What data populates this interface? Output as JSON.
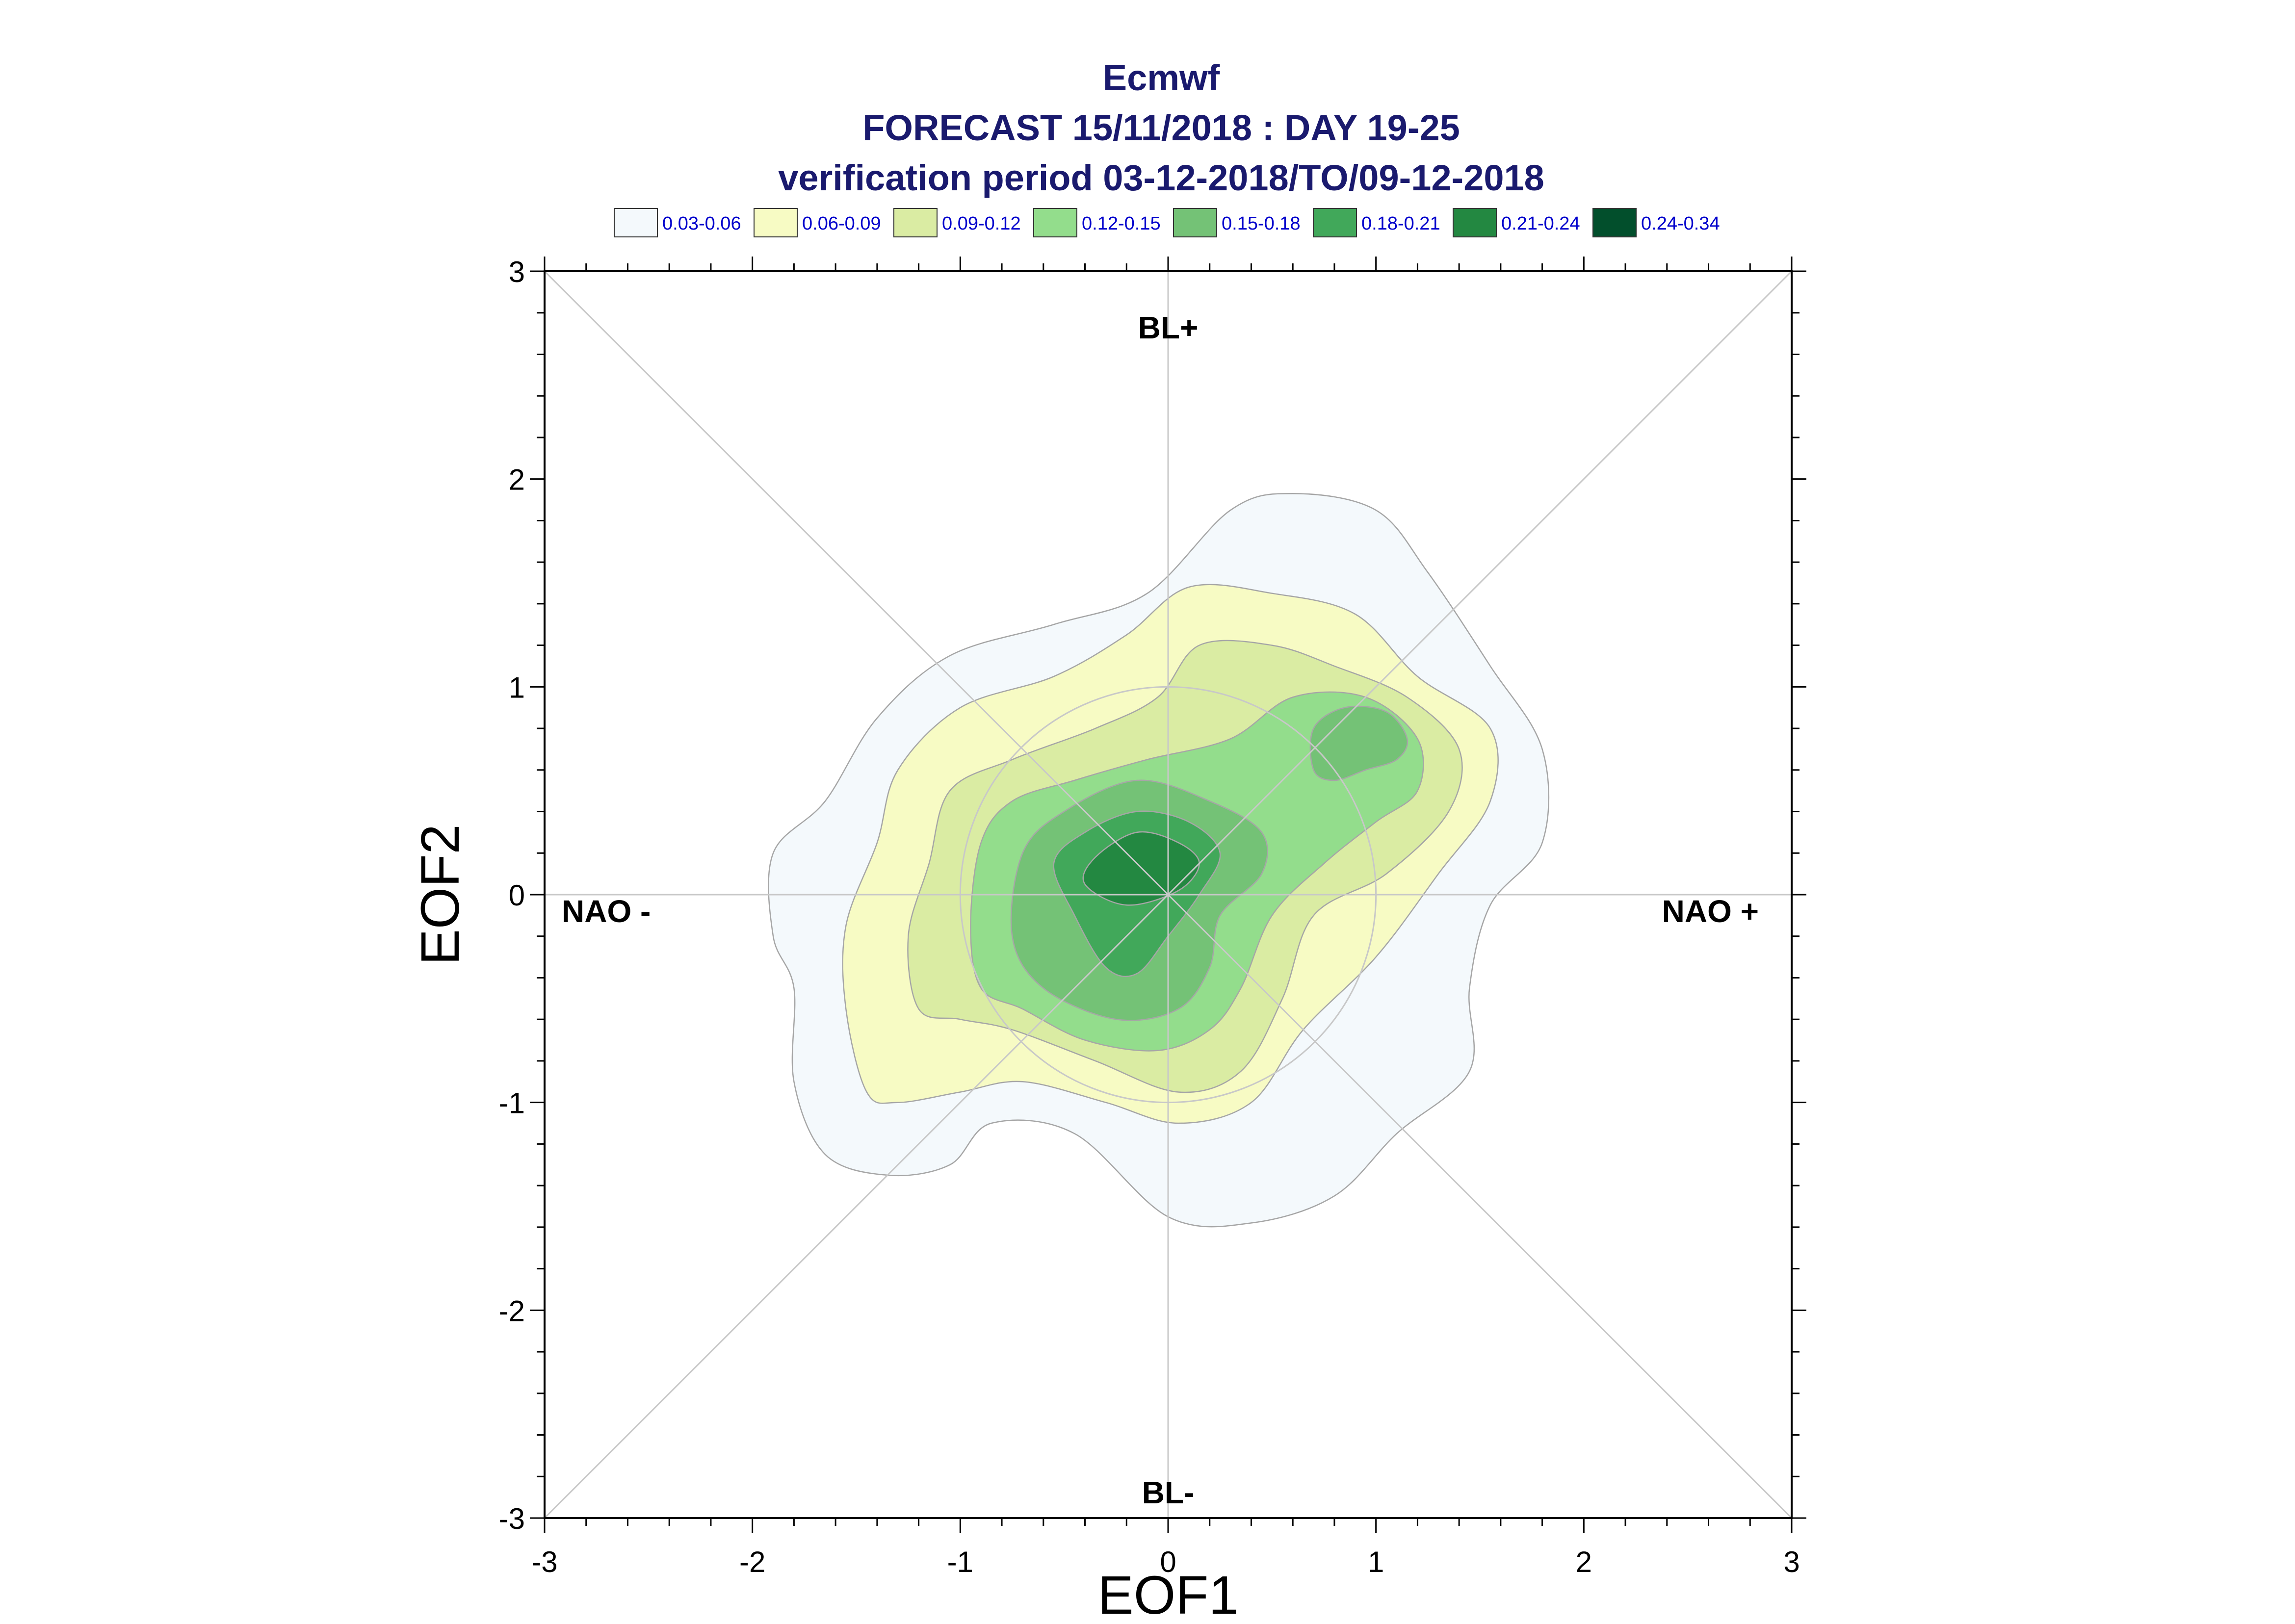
{
  "title": {
    "line1": "Ecmwf",
    "line2": "FORECAST 15/11/2018 : DAY 19-25",
    "line3": "verification period 03-12-2018/TO/09-12-2018"
  },
  "legend": [
    {
      "label": "0.03-0.06",
      "color": "#f4f9fc"
    },
    {
      "label": "0.06-0.09",
      "color": "#f7fbc4"
    },
    {
      "label": "0.09-0.12",
      "color": "#daeca3"
    },
    {
      "label": "0.12-0.15",
      "color": "#93dd8c"
    },
    {
      "label": "0.15-0.18",
      "color": "#74c276"
    },
    {
      "label": "0.18-0.21",
      "color": "#41a85a"
    },
    {
      "label": "0.21-0.24",
      "color": "#238841"
    },
    {
      "label": "0.24-0.34",
      "color": "#024f2c"
    }
  ],
  "regions": {
    "top": "BL+",
    "bottom": "BL-",
    "left": "NAO -",
    "right": "NAO +"
  },
  "chart_data": {
    "type": "contour",
    "title": "Ecmwf FORECAST 15/11/2018 : DAY 19-25 verification period 03-12-2018/TO/09-12-2018",
    "xlabel": "EOF1",
    "ylabel": "EOF2",
    "xlim": [
      -3,
      3
    ],
    "ylim": [
      -3,
      3
    ],
    "xticks": [
      -3,
      -2,
      -1,
      0,
      1,
      2,
      3
    ],
    "yticks": [
      -3,
      -2,
      -1,
      0,
      1,
      2,
      3
    ],
    "grid": "zero lines, diagonals and unit circle",
    "density_peak": {
      "x": -0.1,
      "y": 0.1,
      "level": "0.21-0.24"
    },
    "secondary_max": {
      "x": 0.9,
      "y": 0.75,
      "level": "0.15-0.18"
    },
    "contours": [
      {
        "level": "0.03-0.06",
        "points": [
          [
            -1.35,
            -1.35
          ],
          [
            -1.65,
            -1.25
          ],
          [
            -1.8,
            -0.9
          ],
          [
            -1.8,
            -0.45
          ],
          [
            -1.9,
            -0.2
          ],
          [
            -1.9,
            0.2
          ],
          [
            -1.65,
            0.45
          ],
          [
            -1.4,
            0.85
          ],
          [
            -1.05,
            1.15
          ],
          [
            -0.55,
            1.3
          ],
          [
            -0.1,
            1.45
          ],
          [
            0.3,
            1.85
          ],
          [
            0.6,
            1.93
          ],
          [
            1.0,
            1.85
          ],
          [
            1.25,
            1.55
          ],
          [
            1.55,
            1.1
          ],
          [
            1.8,
            0.7
          ],
          [
            1.8,
            0.25
          ],
          [
            1.55,
            -0.05
          ],
          [
            1.45,
            -0.45
          ],
          [
            1.45,
            -0.85
          ],
          [
            1.1,
            -1.15
          ],
          [
            0.8,
            -1.45
          ],
          [
            0.4,
            -1.58
          ],
          [
            0,
            -1.55
          ],
          [
            -0.45,
            -1.15
          ],
          [
            -0.85,
            -1.1
          ],
          [
            -1.05,
            -1.3
          ]
        ]
      },
      {
        "level": "0.06-0.09",
        "points": [
          [
            -1.45,
            -0.95
          ],
          [
            -1.55,
            -0.55
          ],
          [
            -1.55,
            -0.15
          ],
          [
            -1.4,
            0.25
          ],
          [
            -1.3,
            0.6
          ],
          [
            -1.0,
            0.9
          ],
          [
            -0.55,
            1.05
          ],
          [
            -0.2,
            1.25
          ],
          [
            0.1,
            1.48
          ],
          [
            0.5,
            1.45
          ],
          [
            0.9,
            1.35
          ],
          [
            1.2,
            1.05
          ],
          [
            1.55,
            0.8
          ],
          [
            1.55,
            0.45
          ],
          [
            1.3,
            0.1
          ],
          [
            1.0,
            -0.3
          ],
          [
            0.65,
            -0.65
          ],
          [
            0.4,
            -1.0
          ],
          [
            0.05,
            -1.1
          ],
          [
            -0.3,
            -1.0
          ],
          [
            -0.7,
            -0.9
          ],
          [
            -1.0,
            -0.95
          ],
          [
            -1.3,
            -1.0
          ]
        ]
      },
      {
        "level": "0.09-0.12",
        "points": [
          [
            -1.2,
            -0.55
          ],
          [
            -1.25,
            -0.2
          ],
          [
            -1.15,
            0.15
          ],
          [
            -1.05,
            0.5
          ],
          [
            -0.75,
            0.65
          ],
          [
            -0.35,
            0.8
          ],
          [
            -0.05,
            0.95
          ],
          [
            0.15,
            1.2
          ],
          [
            0.5,
            1.2
          ],
          [
            0.8,
            1.1
          ],
          [
            1.15,
            0.95
          ],
          [
            1.4,
            0.7
          ],
          [
            1.35,
            0.4
          ],
          [
            1.05,
            0.1
          ],
          [
            0.7,
            -0.1
          ],
          [
            0.55,
            -0.5
          ],
          [
            0.35,
            -0.85
          ],
          [
            0.05,
            -0.95
          ],
          [
            -0.35,
            -0.8
          ],
          [
            -0.75,
            -0.65
          ],
          [
            -1.0,
            -0.6
          ]
        ]
      },
      {
        "level": "0.12-0.15",
        "points": [
          [
            -0.9,
            -0.45
          ],
          [
            -0.95,
            -0.15
          ],
          [
            -0.9,
            0.25
          ],
          [
            -0.75,
            0.45
          ],
          [
            -0.45,
            0.55
          ],
          [
            -0.1,
            0.65
          ],
          [
            0.3,
            0.75
          ],
          [
            0.6,
            0.95
          ],
          [
            0.95,
            0.95
          ],
          [
            1.2,
            0.75
          ],
          [
            1.2,
            0.5
          ],
          [
            1.0,
            0.35
          ],
          [
            0.75,
            0.15
          ],
          [
            0.5,
            -0.1
          ],
          [
            0.35,
            -0.45
          ],
          [
            0.2,
            -0.65
          ],
          [
            -0.05,
            -0.75
          ],
          [
            -0.4,
            -0.7
          ],
          [
            -0.7,
            -0.55
          ]
        ]
      },
      {
        "level": "0.15-0.18",
        "points": [
          [
            -0.6,
            -0.45
          ],
          [
            -0.75,
            -0.2
          ],
          [
            -0.7,
            0.2
          ],
          [
            -0.5,
            0.4
          ],
          [
            -0.15,
            0.55
          ],
          [
            0.2,
            0.45
          ],
          [
            0.45,
            0.3
          ],
          [
            0.45,
            0.1
          ],
          [
            0.25,
            -0.1
          ],
          [
            0.2,
            -0.35
          ],
          [
            0.05,
            -0.55
          ],
          [
            -0.25,
            -0.6
          ]
        ]
      },
      {
        "level": "0.15-0.18",
        "points": [
          [
            0.7,
            0.6
          ],
          [
            0.7,
            0.8
          ],
          [
            0.85,
            0.9
          ],
          [
            1.05,
            0.88
          ],
          [
            1.15,
            0.75
          ],
          [
            1.1,
            0.65
          ],
          [
            0.95,
            0.6
          ],
          [
            0.8,
            0.55
          ]
        ]
      },
      {
        "level": "0.18-0.21",
        "points": [
          [
            -0.3,
            -0.35
          ],
          [
            -0.45,
            -0.1
          ],
          [
            -0.55,
            0.15
          ],
          [
            -0.4,
            0.3
          ],
          [
            -0.15,
            0.4
          ],
          [
            0.1,
            0.35
          ],
          [
            0.25,
            0.2
          ],
          [
            0.15,
            0.0
          ],
          [
            0.0,
            -0.2
          ],
          [
            -0.15,
            -0.38
          ]
        ]
      },
      {
        "level": "0.21-0.24",
        "points": [
          [
            -0.2,
            -0.05
          ],
          [
            -0.4,
            0.05
          ],
          [
            -0.35,
            0.18
          ],
          [
            -0.15,
            0.3
          ],
          [
            0.05,
            0.25
          ],
          [
            0.15,
            0.15
          ],
          [
            0.05,
            0.02
          ]
        ]
      }
    ]
  }
}
